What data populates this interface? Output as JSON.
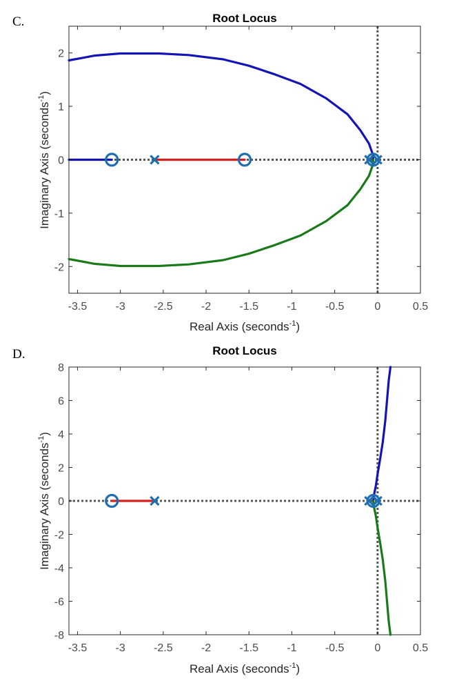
{
  "panels": [
    {
      "letter": "C.",
      "chart_data": {
        "type": "line",
        "title": "Root Locus",
        "xlabel": "Real Axis (seconds",
        "xlabel_sup": "-1",
        "xlabel_tail": ")",
        "ylabel": "Imaginary Axis (seconds",
        "ylabel_sup": "-1",
        "ylabel_tail": ")",
        "xlim": [
          -3.6,
          0.5
        ],
        "ylim": [
          -2.5,
          2.5
        ],
        "xticks": [
          -3.5,
          -3,
          -2.5,
          -2,
          -1.5,
          -1,
          -0.5,
          0,
          0.5
        ],
        "xtick_labels": [
          "-3.5",
          "-3",
          "-2.5",
          "-2",
          "-1.5",
          "-1",
          "-0.5",
          "0",
          "0.5"
        ],
        "yticks": [
          -2,
          -1,
          0,
          1,
          2
        ],
        "ytick_labels": [
          "-2",
          "-1",
          "0",
          "1",
          "2"
        ],
        "grid": false,
        "reference_lines": {
          "x": 0,
          "y": 0
        },
        "series": [
          {
            "color": "#1414b4",
            "points": [
              [
                -0.05,
                0
              ],
              [
                -0.06,
                0.12
              ],
              [
                -0.1,
                0.3
              ],
              [
                -0.2,
                0.55
              ],
              [
                -0.35,
                0.85
              ],
              [
                -0.6,
                1.15
              ],
              [
                -0.9,
                1.42
              ],
              [
                -1.2,
                1.6
              ],
              [
                -1.5,
                1.76
              ],
              [
                -1.8,
                1.88
              ],
              [
                -2.2,
                1.96
              ],
              [
                -2.55,
                1.99
              ],
              [
                -3.0,
                1.99
              ],
              [
                -3.3,
                1.95
              ],
              [
                -3.6,
                1.86
              ]
            ]
          },
          {
            "color": "#1a7a1a",
            "points": [
              [
                -0.05,
                0
              ],
              [
                -0.06,
                -0.12
              ],
              [
                -0.1,
                -0.3
              ],
              [
                -0.2,
                -0.55
              ],
              [
                -0.35,
                -0.85
              ],
              [
                -0.6,
                -1.15
              ],
              [
                -0.9,
                -1.42
              ],
              [
                -1.2,
                -1.6
              ],
              [
                -1.5,
                -1.76
              ],
              [
                -1.8,
                -1.88
              ],
              [
                -2.2,
                -1.96
              ],
              [
                -2.55,
                -1.99
              ],
              [
                -3.0,
                -1.99
              ],
              [
                -3.3,
                -1.95
              ],
              [
                -3.6,
                -1.86
              ]
            ]
          },
          {
            "color": "#d42020",
            "points": [
              [
                -2.6,
                0
              ],
              [
                -1.55,
                0
              ]
            ]
          },
          {
            "color": "#1414b4",
            "points": [
              [
                -3.6,
                0
              ],
              [
                -3.1,
                0
              ]
            ]
          }
        ],
        "poles": [
          [
            -2.6,
            0
          ],
          [
            -0.1,
            0
          ],
          [
            0,
            0
          ]
        ],
        "zeros": [
          [
            -3.1,
            0
          ],
          [
            -1.55,
            0
          ],
          [
            -0.05,
            0
          ]
        ],
        "marker_color": "#1f6fb0"
      }
    },
    {
      "letter": "D.",
      "chart_data": {
        "type": "line",
        "title": "Root Locus",
        "xlabel": "Real Axis (seconds",
        "xlabel_sup": "-1",
        "xlabel_tail": ")",
        "ylabel": "Imaginary Axis (seconds",
        "ylabel_sup": "-1",
        "ylabel_tail": ")",
        "xlim": [
          -3.6,
          0.5
        ],
        "ylim": [
          -8,
          8
        ],
        "xticks": [
          -3.5,
          -3,
          -2.5,
          -2,
          -1.5,
          -1,
          -0.5,
          0,
          0.5
        ],
        "xtick_labels": [
          "-3.5",
          "-3",
          "-2.5",
          "-2",
          "-1.5",
          "-1",
          "-0.5",
          "0",
          "0.5"
        ],
        "yticks": [
          -8,
          -6,
          -4,
          -2,
          0,
          2,
          4,
          6,
          8
        ],
        "ytick_labels": [
          "-8",
          "-6",
          "-4",
          "-2",
          "0",
          "2",
          "4",
          "6",
          "8"
        ],
        "grid": false,
        "reference_lines": {
          "x": 0,
          "y": 0
        },
        "series": [
          {
            "color": "#1414b4",
            "points": [
              [
                -0.05,
                0
              ],
              [
                -0.04,
                0.4
              ],
              [
                -0.02,
                0.9
              ],
              [
                0.0,
                1.6
              ],
              [
                0.03,
                2.5
              ],
              [
                0.06,
                3.5
              ],
              [
                0.09,
                4.8
              ],
              [
                0.11,
                6.0
              ],
              [
                0.13,
                7.2
              ],
              [
                0.15,
                8.0
              ]
            ]
          },
          {
            "color": "#1a7a1a",
            "points": [
              [
                -0.05,
                0
              ],
              [
                -0.04,
                -0.4
              ],
              [
                -0.02,
                -0.9
              ],
              [
                0.0,
                -1.6
              ],
              [
                0.03,
                -2.5
              ],
              [
                0.06,
                -3.5
              ],
              [
                0.09,
                -4.8
              ],
              [
                0.11,
                -6.0
              ],
              [
                0.13,
                -7.2
              ],
              [
                0.15,
                -8.0
              ]
            ]
          },
          {
            "color": "#d42020",
            "points": [
              [
                -3.1,
                0
              ],
              [
                -2.6,
                0
              ]
            ]
          }
        ],
        "poles": [
          [
            -2.6,
            0
          ],
          [
            -0.1,
            0
          ],
          [
            0,
            0
          ]
        ],
        "zeros": [
          [
            -3.1,
            0
          ],
          [
            -0.05,
            0
          ]
        ],
        "marker_color": "#1f6fb0"
      }
    }
  ]
}
